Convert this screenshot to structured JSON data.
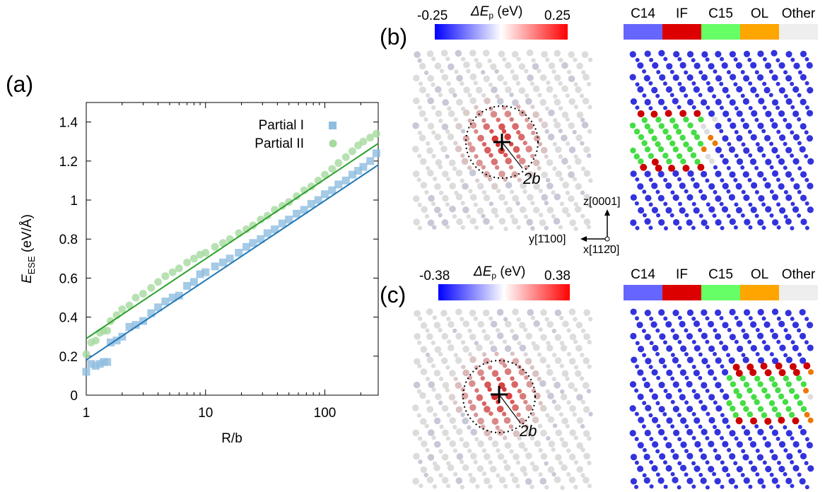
{
  "panel_labels": {
    "a": "(a)",
    "b": "(b)",
    "c": "(c)"
  },
  "colors": {
    "partial_I": "#8fbde0",
    "partial_II": "#a6d9a0",
    "fit_I": "#1f77b4",
    "fit_II": "#2ca02c",
    "C14": "#6666ff",
    "IF": "#dd0000",
    "C15": "#66ff66",
    "OL": "#ffa500",
    "Other": "#eeeeee",
    "atom_C14": "#3333dd",
    "atom_IF": "#cc0000",
    "atom_C15": "#44dd44",
    "atom_OL": "#ee7700",
    "atom_Other": "#dddddd"
  },
  "chart_data": [
    {
      "type": "scatter",
      "xlabel": "R/b",
      "ylabel_main": "E",
      "ylabel_sub": "ESE",
      "ylabel_unit": "(eV/Å)",
      "xscale": "log",
      "xlim": [
        1,
        280
      ],
      "ylim": [
        0,
        1.5
      ],
      "xticks": [
        {
          "v": 1,
          "label": "1"
        },
        {
          "v": 10,
          "label": "10"
        },
        {
          "v": 100,
          "label": "100"
        }
      ],
      "yticks": [
        {
          "v": 0,
          "label": "0"
        },
        {
          "v": 0.2,
          "label": "0.2"
        },
        {
          "v": 0.4,
          "label": "0.4"
        },
        {
          "v": 0.6,
          "label": "0.6"
        },
        {
          "v": 0.8,
          "label": "0.8"
        },
        {
          "v": 1.0,
          "label": "1"
        },
        {
          "v": 1.2,
          "label": "1.2"
        },
        {
          "v": 1.4,
          "label": "1.4"
        }
      ],
      "legend_position": "top-right",
      "series": [
        {
          "name": "Partial I",
          "marker": "square",
          "x": [
            1.0,
            1.1,
            1.2,
            1.3,
            1.4,
            1.5,
            1.6,
            1.8,
            2.0,
            2.3,
            2.6,
            3.0,
            3.5,
            4.0,
            4.6,
            5.3,
            6.0,
            7.0,
            8.0,
            9.0,
            10,
            12,
            14,
            16,
            19,
            22,
            25,
            29,
            33,
            38,
            44,
            50,
            58,
            67,
            77,
            88,
            100,
            115,
            130,
            150,
            170,
            190,
            210,
            240,
            270
          ],
          "y": [
            0.12,
            0.16,
            0.15,
            0.16,
            0.17,
            0.17,
            0.27,
            0.28,
            0.3,
            0.35,
            0.36,
            0.38,
            0.42,
            0.45,
            0.48,
            0.5,
            0.51,
            0.56,
            0.58,
            0.62,
            0.63,
            0.66,
            0.68,
            0.7,
            0.73,
            0.76,
            0.78,
            0.8,
            0.83,
            0.85,
            0.88,
            0.9,
            0.93,
            0.95,
            0.98,
            1.0,
            1.03,
            1.05,
            1.08,
            1.1,
            1.13,
            1.15,
            1.17,
            1.2,
            1.24
          ]
        },
        {
          "name": "Partial II",
          "marker": "circle",
          "x": [
            1.0,
            1.1,
            1.2,
            1.3,
            1.4,
            1.5,
            1.6,
            1.8,
            2.0,
            2.3,
            2.6,
            3.0,
            3.5,
            4.0,
            4.6,
            5.3,
            6.0,
            7.0,
            8.0,
            9.0,
            10,
            12,
            14,
            16,
            19,
            22,
            25,
            29,
            33,
            38,
            44,
            50,
            58,
            67,
            77,
            88,
            100,
            115,
            130,
            150,
            170,
            190,
            210,
            240,
            270
          ],
          "y": [
            0.21,
            0.27,
            0.28,
            0.32,
            0.33,
            0.33,
            0.38,
            0.41,
            0.44,
            0.46,
            0.5,
            0.52,
            0.55,
            0.58,
            0.61,
            0.63,
            0.65,
            0.68,
            0.7,
            0.72,
            0.73,
            0.76,
            0.78,
            0.8,
            0.83,
            0.85,
            0.87,
            0.9,
            0.92,
            0.95,
            0.97,
            0.99,
            1.02,
            1.05,
            1.07,
            1.1,
            1.13,
            1.16,
            1.19,
            1.22,
            1.25,
            1.28,
            1.3,
            1.32,
            1.34
          ]
        }
      ],
      "fits": [
        {
          "series": "Partial I",
          "x": [
            1,
            280
          ],
          "y": [
            0.18,
            1.18
          ]
        },
        {
          "series": "Partial II",
          "x": [
            1,
            280
          ],
          "y": [
            0.29,
            1.29
          ]
        }
      ]
    },
    {
      "type": "heatmap",
      "panel": "b",
      "colorbar_label": "ΔE",
      "colorbar_sub": "p",
      "colorbar_unit": "(eV)",
      "colorbar_min": "-0.25",
      "colorbar_max": "0.25",
      "radius_label": "2b",
      "axes": {
        "z": "z[0001]",
        "y": "y[1̄100]",
        "x": "x[112̄0]"
      }
    },
    {
      "type": "heatmap",
      "panel": "c",
      "colorbar_label": "ΔE",
      "colorbar_sub": "p",
      "colorbar_unit": "(eV)",
      "colorbar_min": "-0.38",
      "colorbar_max": "0.38",
      "radius_label": "2b"
    }
  ],
  "structure_legend": [
    "C14",
    "IF",
    "C15",
    "OL",
    "Other"
  ]
}
